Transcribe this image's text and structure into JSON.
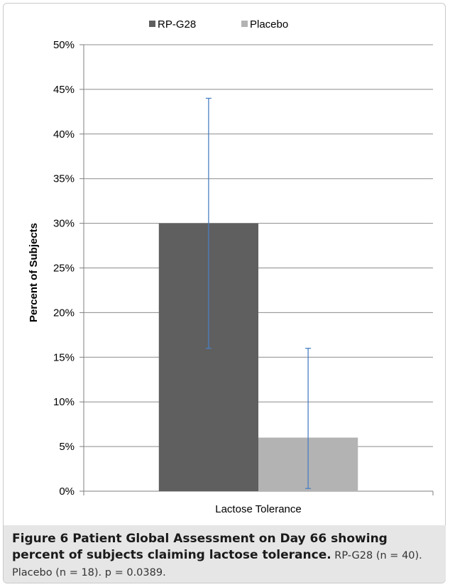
{
  "chart_data": {
    "type": "bar",
    "categories": [
      "Lactose Tolerance"
    ],
    "series": [
      {
        "name": "RP-G28",
        "values": [
          0.3
        ],
        "error_low": [
          0.16
        ],
        "error_high": [
          0.44
        ],
        "color": "#5f5f5f"
      },
      {
        "name": "Placebo",
        "values": [
          0.06
        ],
        "error_low": [
          0.003
        ],
        "error_high": [
          0.16
        ],
        "color": "#b3b3b3"
      }
    ],
    "ylabel": "Percent of Subjects",
    "xlabel": "",
    "ylim": [
      0,
      0.5
    ],
    "yticks": [
      "0%",
      "5%",
      "10%",
      "15%",
      "20%",
      "25%",
      "30%",
      "35%",
      "40%",
      "45%",
      "50%"
    ],
    "grid": true,
    "legend_position": "top",
    "error_bar_color": "#4a7fc1"
  },
  "caption": {
    "title": "Figure 6 Patient Global Assessment on Day 66 showing percent of subjects claiming lactose tolerance.",
    "body": " RP-G28 (n = 40). Placebo (n = 18). p = 0.0389."
  }
}
